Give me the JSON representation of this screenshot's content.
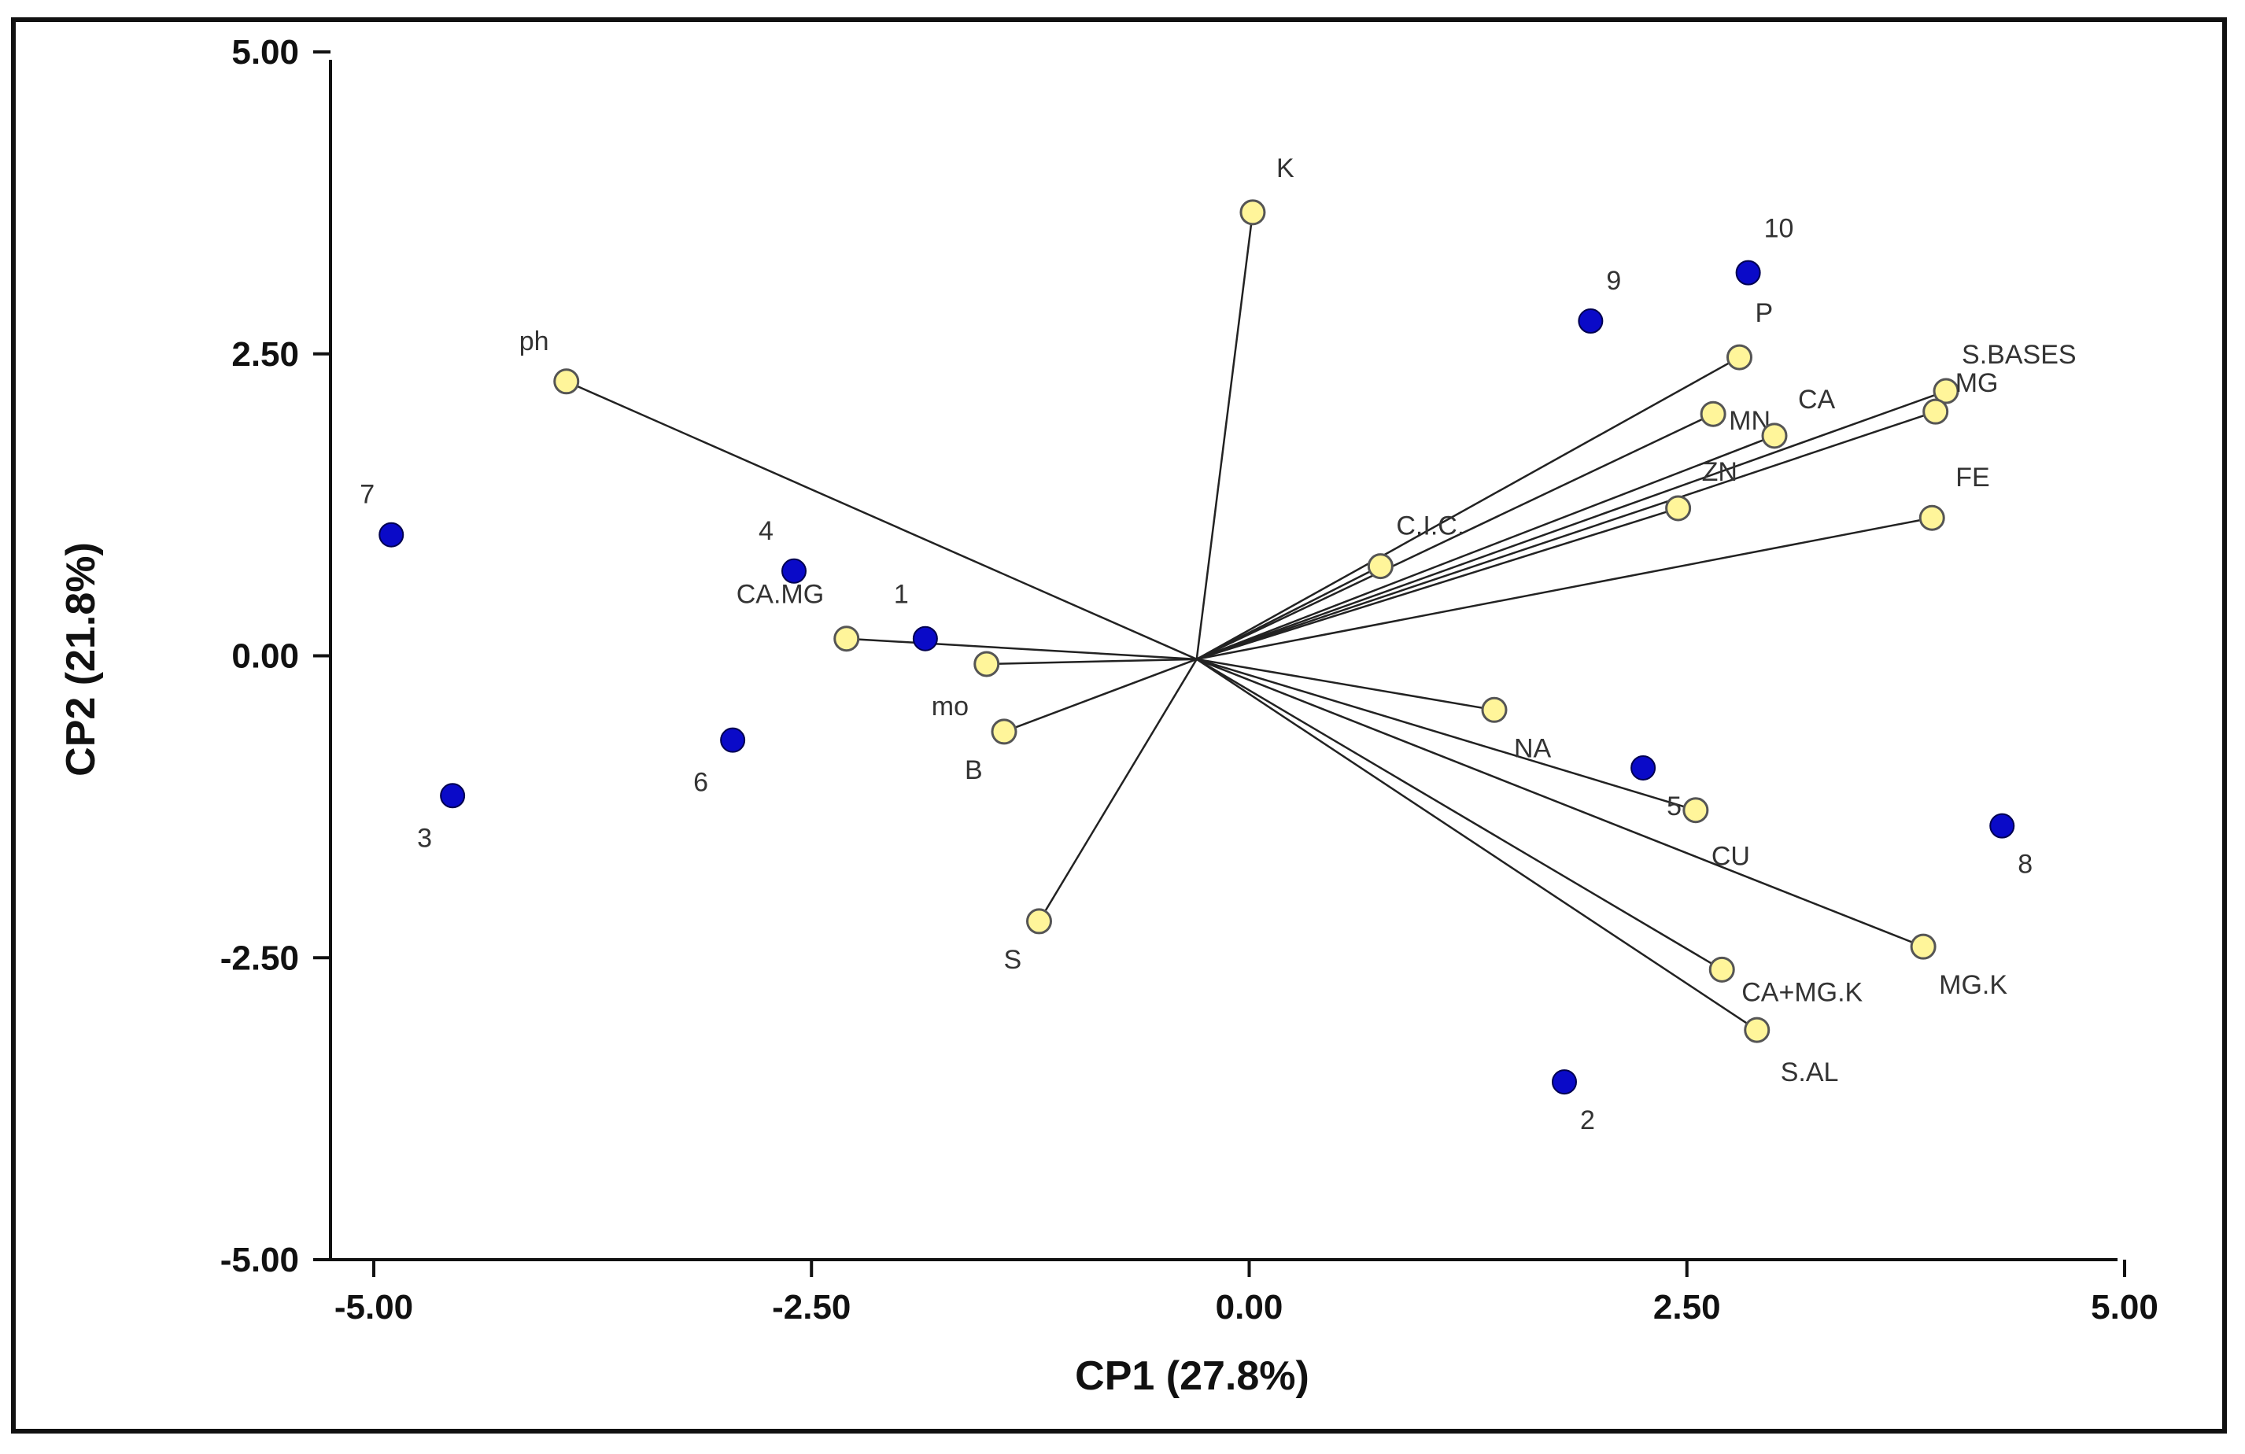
{
  "chart_data": {
    "type": "scatter",
    "subtype": "pca-biplot",
    "title": "",
    "xlabel": "CP1 (27.8%)",
    "ylabel": "CP2 (21.8%)",
    "xlim": [
      -5.0,
      5.0
    ],
    "ylim": [
      -5.0,
      5.0
    ],
    "x_ticks": [
      "-5.00",
      "-2.50",
      "0.00",
      "2.50",
      "5.00"
    ],
    "y_ticks": [
      "5.00",
      "2.50",
      "0.00",
      "-2.50",
      "-5.00"
    ],
    "grid": false,
    "origin": [
      -0.3,
      0.05
    ],
    "colors": {
      "samples": "#0a0ac8",
      "variables": "#fff59a",
      "variable_stroke": "#555555",
      "vectors": "#222222"
    },
    "samples": [
      {
        "label": "1",
        "x": -1.85,
        "y": 0.22
      },
      {
        "label": "2",
        "x": 1.8,
        "y": -3.45
      },
      {
        "label": "3",
        "x": -4.55,
        "y": -1.08
      },
      {
        "label": "4",
        "x": -2.6,
        "y": 0.78
      },
      {
        "label": "5",
        "x": 2.25,
        "y": -0.85
      },
      {
        "label": "6",
        "x": -2.95,
        "y": -0.62
      },
      {
        "label": "7",
        "x": -4.9,
        "y": 1.08
      },
      {
        "label": "8",
        "x": 4.3,
        "y": -1.33
      },
      {
        "label": "9",
        "x": 1.95,
        "y": 2.85
      },
      {
        "label": "10",
        "x": 2.85,
        "y": 3.25
      }
    ],
    "variables": [
      {
        "label": "K",
        "x": 0.02,
        "y": 3.75
      },
      {
        "label": "ph",
        "x": -3.9,
        "y": 2.35
      },
      {
        "label": "P",
        "x": 2.8,
        "y": 2.55
      },
      {
        "label": "MN",
        "x": 2.65,
        "y": 2.08
      },
      {
        "label": "CA",
        "x": 3.0,
        "y": 1.9
      },
      {
        "label": "S.BASES",
        "x": 3.98,
        "y": 2.27
      },
      {
        "label": "MG",
        "x": 3.92,
        "y": 2.1
      },
      {
        "label": "ZN",
        "x": 2.45,
        "y": 1.3
      },
      {
        "label": "FE",
        "x": 3.9,
        "y": 1.22
      },
      {
        "label": "C.I.C.",
        "x": 0.75,
        "y": 0.82
      },
      {
        "label": "CA.MG",
        "x": -2.3,
        "y": 0.22
      },
      {
        "label": "mo",
        "x": -1.5,
        "y": 0.01
      },
      {
        "label": "B",
        "x": -1.4,
        "y": -0.55
      },
      {
        "label": "S",
        "x": -1.2,
        "y": -2.12
      },
      {
        "label": "NA",
        "x": 1.4,
        "y": -0.37
      },
      {
        "label": "CU",
        "x": 2.55,
        "y": -1.2
      },
      {
        "label": "MG.K",
        "x": 3.85,
        "y": -2.33
      },
      {
        "label": "CA+MG.K",
        "x": 2.7,
        "y": -2.52
      },
      {
        "label": "S.AL",
        "x": 2.9,
        "y": -3.02
      }
    ]
  }
}
